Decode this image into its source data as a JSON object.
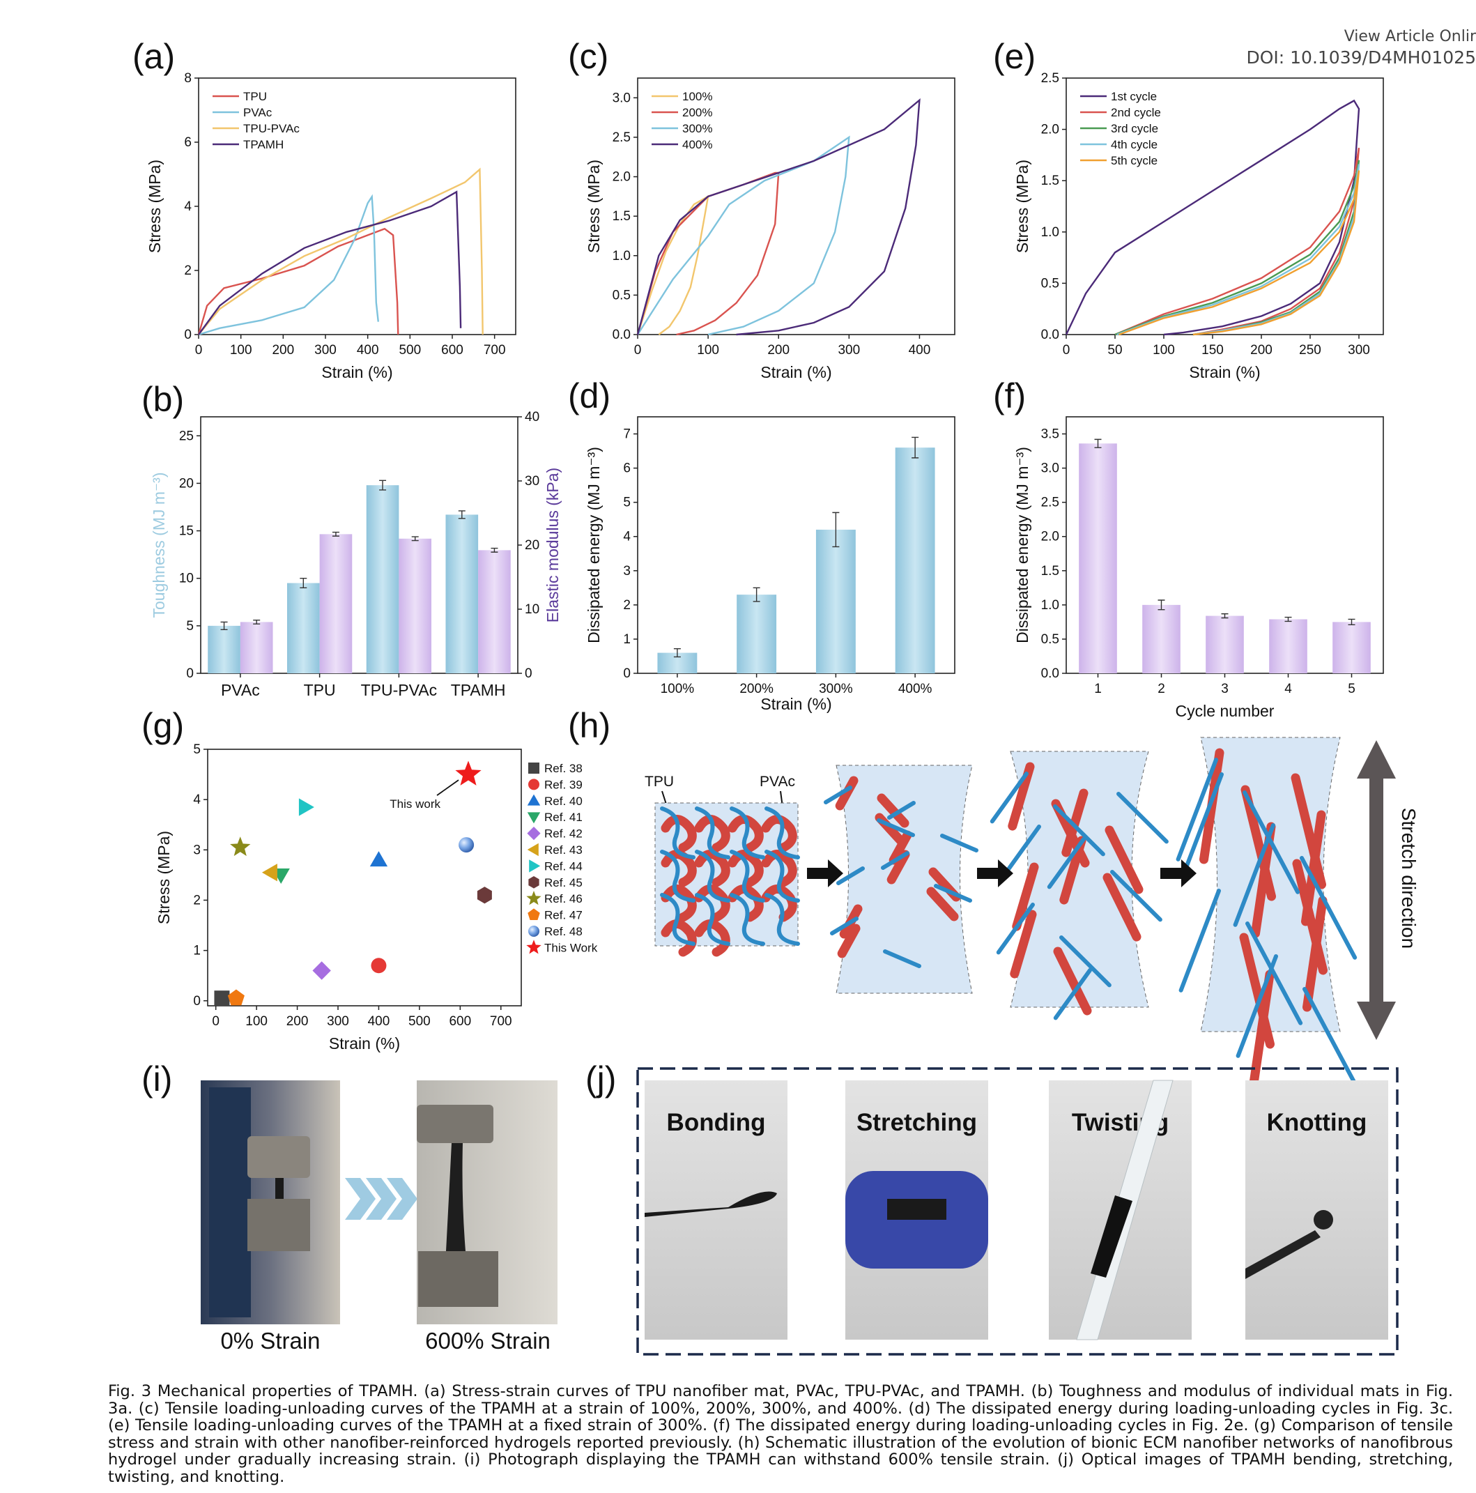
{
  "journal": {
    "view_online": "View Article Onlir",
    "doi": "DOI: 10.1039/D4MH01025"
  },
  "caption": "Fig. 3 Mechanical properties of TPAMH. (a) Stress-strain curves of TPU nanofiber mat, PVAc, TPU-PVAc, and TPAMH. (b) Toughness and modulus of individual mats in Fig. 3a. (c) Tensile loading-unloading curves of the TPAMH at a strain of 100%, 200%, 300%, and 400%. (d) The dissipated energy during loading-unloading cycles in Fig. 3c. (e) Tensile loading-unloading curves of the TPAMH at a fixed strain of 300%. (f) The dissipated energy during loading-unloading cycles in Fig. 2e. (g) Comparison of tensile stress and strain with other nanofiber-reinforced hydrogels reported previously. (h) Schematic illustration of the evolution of bionic ECM nanofiber networks of nanofibrous hydrogel under gradually increasing strain. (i) Photograph displaying the TPAMH can withstand 600% tensile strain. (j) Optical images of TPAMH bending, stretching, twisting, and knotting.",
  "panel_labels": {
    "a": "(a)",
    "b": "(b)",
    "c": "(c)",
    "d": "(d)",
    "e": "(e)",
    "f": "(f)",
    "g": "(g)",
    "h": "(h)",
    "i": "(i)",
    "j": "(j)"
  },
  "colors": {
    "tpu": "#d9534f",
    "pvac": "#7ec3dd",
    "tpupvac": "#f2c66d",
    "tpamh": "#4b2a78",
    "bar_blue": "#a8d4e6",
    "bar_purple": "#d8c3ee",
    "green": "#4a9a52",
    "orange": "#f0a030"
  },
  "chart_data": [
    {
      "id": "a",
      "type": "line",
      "xlabel": "Strain (%)",
      "ylabel": "Stress (MPa)",
      "xlim": [
        0,
        750
      ],
      "ylim": [
        0,
        8
      ],
      "xticks": [
        0,
        100,
        200,
        300,
        400,
        500,
        600,
        700
      ],
      "yticks": [
        0,
        2,
        4,
        6,
        8
      ],
      "legend": "top-left",
      "series": [
        {
          "name": "TPU",
          "color": "#d9534f",
          "x": [
            0,
            20,
            60,
            150,
            250,
            330,
            400,
            440,
            460,
            470,
            472
          ],
          "y": [
            0,
            0.9,
            1.45,
            1.75,
            2.15,
            2.75,
            3.1,
            3.3,
            3.1,
            1.0,
            0
          ]
        },
        {
          "name": "PVAc",
          "color": "#7ec3dd",
          "x": [
            0,
            50,
            150,
            250,
            320,
            370,
            400,
            410,
            415,
            420,
            425
          ],
          "y": [
            0,
            0.2,
            0.45,
            0.85,
            1.7,
            3.0,
            4.1,
            4.3,
            3.2,
            1.0,
            0.4
          ]
        },
        {
          "name": "TPU-PVAc",
          "color": "#f2c66d",
          "x": [
            0,
            50,
            150,
            250,
            350,
            450,
            550,
            630,
            665,
            670,
            672
          ],
          "y": [
            0,
            0.8,
            1.7,
            2.45,
            3.0,
            3.65,
            4.25,
            4.75,
            5.15,
            2.0,
            0
          ]
        },
        {
          "name": "TPAMH",
          "color": "#4b2a78",
          "x": [
            0,
            50,
            150,
            250,
            350,
            450,
            550,
            610,
            618,
            620
          ],
          "y": [
            0,
            0.9,
            1.9,
            2.7,
            3.2,
            3.55,
            4.0,
            4.45,
            1.5,
            0.2
          ]
        }
      ]
    },
    {
      "id": "b",
      "type": "bar",
      "categories": [
        "PVAc",
        "TPU",
        "TPU-PVAc",
        "TPAMH"
      ],
      "ylabel": "Toughness (MJ m⁻³)",
      "y2label": "Elastic modulus (kPa)",
      "ylim": [
        0,
        27
      ],
      "y2lim": [
        0,
        40
      ],
      "yticks": [
        0,
        5,
        10,
        15,
        20,
        25
      ],
      "y2ticks": [
        0,
        10,
        20,
        30,
        40
      ],
      "series": [
        {
          "name": "Toughness",
          "axis": "left",
          "color": "#a8d4e6",
          "values": [
            5.0,
            9.5,
            19.8,
            16.7
          ],
          "errors": [
            0.4,
            0.5,
            0.5,
            0.4
          ]
        },
        {
          "name": "Elastic modulus",
          "axis": "right",
          "color": "#d8c3ee",
          "values": [
            8.0,
            21.7,
            21.0,
            19.2
          ],
          "errors": [
            0.3,
            0.3,
            0.3,
            0.3
          ]
        }
      ]
    },
    {
      "id": "c",
      "type": "line",
      "xlabel": "Strain (%)",
      "ylabel": "Stress (MPa)",
      "xlim": [
        0,
        450
      ],
      "ylim": [
        0,
        3.25
      ],
      "xticks": [
        0,
        100,
        200,
        300,
        400
      ],
      "yticks": [
        0,
        0.5,
        1.0,
        1.5,
        2.0,
        2.5,
        3.0
      ],
      "legend": "top-left",
      "series": [
        {
          "name": "100%",
          "color": "#f2c66d",
          "x": [
            0,
            20,
            40,
            60,
            80,
            100,
            95,
            85,
            75,
            60,
            45,
            30
          ],
          "y": [
            0,
            0.55,
            1.05,
            1.4,
            1.65,
            1.75,
            1.5,
            1.0,
            0.6,
            0.3,
            0.1,
            0
          ]
        },
        {
          "name": "200%",
          "color": "#d9534f",
          "x": [
            0,
            25,
            50,
            100,
            150,
            195,
            200,
            195,
            170,
            140,
            110,
            80,
            55
          ],
          "y": [
            0,
            0.8,
            1.3,
            1.75,
            1.9,
            2.05,
            2.05,
            1.4,
            0.75,
            0.4,
            0.18,
            0.05,
            0
          ]
        },
        {
          "name": "300%",
          "color": "#7ec3dd",
          "x": [
            0,
            50,
            100,
            130,
            180,
            250,
            300,
            295,
            280,
            250,
            200,
            150,
            100
          ],
          "y": [
            0,
            0.7,
            1.25,
            1.65,
            1.95,
            2.2,
            2.5,
            2.0,
            1.3,
            0.65,
            0.3,
            0.1,
            0
          ]
        },
        {
          "name": "400%",
          "color": "#4b2a78",
          "x": [
            0,
            30,
            60,
            100,
            150,
            250,
            350,
            400,
            395,
            380,
            350,
            300,
            250,
            200,
            140
          ],
          "y": [
            0,
            1.0,
            1.45,
            1.75,
            1.9,
            2.2,
            2.6,
            2.97,
            2.4,
            1.6,
            0.8,
            0.35,
            0.15,
            0.05,
            0
          ]
        }
      ]
    },
    {
      "id": "d",
      "type": "bar",
      "categories": [
        "100%",
        "200%",
        "300%",
        "400%"
      ],
      "xlabel": "Strain (%)",
      "ylabel": "Dissipated energy (MJ m⁻³)",
      "ylim": [
        0,
        7.5
      ],
      "yticks": [
        0,
        1,
        2,
        3,
        4,
        5,
        6,
        7
      ],
      "color": "#a8d4e6",
      "values": [
        0.6,
        2.3,
        4.2,
        6.6
      ],
      "errors": [
        0.12,
        0.2,
        0.5,
        0.3
      ]
    },
    {
      "id": "e",
      "type": "line",
      "xlabel": "Strain (%)",
      "ylabel": "Stress (MPa)",
      "xlim": [
        0,
        325
      ],
      "ylim": [
        0,
        2.5
      ],
      "xticks": [
        0,
        50,
        100,
        150,
        200,
        250,
        300
      ],
      "yticks": [
        0,
        0.5,
        1.0,
        1.5,
        2.0,
        2.5
      ],
      "legend": "top-left",
      "series": [
        {
          "name": "1st cycle",
          "color": "#4b2a78",
          "x": [
            0,
            20,
            50,
            100,
            150,
            200,
            250,
            280,
            295,
            300,
            295,
            280,
            260,
            230,
            200,
            160,
            120,
            100
          ],
          "y": [
            0,
            0.4,
            0.8,
            1.1,
            1.4,
            1.7,
            2.0,
            2.2,
            2.28,
            2.2,
            1.5,
            0.9,
            0.5,
            0.3,
            0.18,
            0.08,
            0.02,
            0
          ]
        },
        {
          "name": "2nd cycle",
          "color": "#d9534f",
          "x": [
            50,
            100,
            150,
            200,
            250,
            280,
            295,
            300,
            295,
            280,
            260,
            230,
            200,
            160,
            130
          ],
          "y": [
            0,
            0.2,
            0.35,
            0.55,
            0.85,
            1.2,
            1.55,
            1.82,
            1.3,
            0.8,
            0.45,
            0.25,
            0.13,
            0.05,
            0
          ]
        },
        {
          "name": "3rd cycle",
          "color": "#4a9a52",
          "x": [
            50,
            100,
            150,
            200,
            250,
            280,
            295,
            300,
            295,
            280,
            260,
            230,
            200,
            160,
            130
          ],
          "y": [
            0,
            0.18,
            0.31,
            0.5,
            0.78,
            1.1,
            1.45,
            1.7,
            1.2,
            0.75,
            0.42,
            0.22,
            0.12,
            0.04,
            0
          ]
        },
        {
          "name": "4th cycle",
          "color": "#7ec3dd",
          "x": [
            52,
            100,
            150,
            200,
            250,
            280,
            295,
            300,
            295,
            280,
            260,
            230,
            200,
            160,
            130
          ],
          "y": [
            0,
            0.17,
            0.29,
            0.47,
            0.74,
            1.05,
            1.38,
            1.66,
            1.15,
            0.72,
            0.4,
            0.21,
            0.11,
            0.04,
            0
          ]
        },
        {
          "name": "5th cycle",
          "color": "#f0a030",
          "x": [
            54,
            100,
            150,
            200,
            250,
            280,
            295,
            300,
            295,
            280,
            260,
            230,
            200,
            160,
            130
          ],
          "y": [
            0,
            0.16,
            0.27,
            0.45,
            0.7,
            1.0,
            1.32,
            1.6,
            1.1,
            0.7,
            0.38,
            0.2,
            0.1,
            0.03,
            0
          ]
        }
      ]
    },
    {
      "id": "f",
      "type": "bar",
      "categories": [
        "1",
        "2",
        "3",
        "4",
        "5"
      ],
      "xlabel": "Cycle number",
      "ylabel": "Dissipated energy (MJ m⁻³)",
      "ylim": [
        0,
        3.75
      ],
      "yticks": [
        0,
        0.5,
        1.0,
        1.5,
        2.0,
        2.5,
        3.0,
        3.5
      ],
      "color": "#d8c3ee",
      "values": [
        3.36,
        1.0,
        0.84,
        0.79,
        0.75
      ],
      "errors": [
        0.06,
        0.07,
        0.03,
        0.03,
        0.04
      ]
    },
    {
      "id": "g",
      "type": "scatter",
      "xlabel": "Strain (%)",
      "ylabel": "Stress (MPa)",
      "xlim": [
        -20,
        750
      ],
      "ylim": [
        -0.1,
        5
      ],
      "xticks": [
        0,
        100,
        200,
        300,
        400,
        500,
        600,
        700
      ],
      "yticks": [
        0,
        1,
        2,
        3,
        4,
        5
      ],
      "legend": "right",
      "annotation": "This work",
      "series": [
        {
          "name": "Ref. 38",
          "marker": "square",
          "color": "#444444",
          "x": 15,
          "y": 0.05
        },
        {
          "name": "Ref. 39",
          "marker": "circle",
          "color": "#e53935",
          "x": 400,
          "y": 0.7
        },
        {
          "name": "Ref. 40",
          "marker": "triangle-up",
          "color": "#1e73d2",
          "x": 400,
          "y": 2.8
        },
        {
          "name": "Ref. 41",
          "marker": "triangle-down",
          "color": "#2aa768",
          "x": 160,
          "y": 2.5
        },
        {
          "name": "Ref. 42",
          "marker": "diamond",
          "color": "#a66de0",
          "x": 260,
          "y": 0.6
        },
        {
          "name": "Ref. 43",
          "marker": "triangle-left",
          "color": "#d6a21a",
          "x": 135,
          "y": 2.55
        },
        {
          "name": "Ref. 44",
          "marker": "triangle-right",
          "color": "#20c4c4",
          "x": 220,
          "y": 3.85
        },
        {
          "name": "Ref. 45",
          "marker": "hexagon",
          "color": "#6b3a3a",
          "x": 660,
          "y": 2.1
        },
        {
          "name": "Ref. 46",
          "marker": "star",
          "color": "#8a8a1a",
          "x": 60,
          "y": 3.05
        },
        {
          "name": "Ref. 47",
          "marker": "pentagon",
          "color": "#f07810",
          "x": 50,
          "y": 0.05
        },
        {
          "name": "Ref. 48",
          "marker": "sphere",
          "color": "#5b8fd8",
          "x": 615,
          "y": 3.1
        },
        {
          "name": "This Work",
          "marker": "star",
          "color": "#ee1c1c",
          "x": 620,
          "y": 4.5
        }
      ]
    }
  ],
  "schematic": {
    "tpu_label": "TPU",
    "pvac_label": "PVAc",
    "stretch_label": "Stretch direction"
  },
  "photos_i": {
    "left_caption": "0% Strain",
    "right_caption": "600% Strain"
  },
  "photos_j": [
    {
      "label": "Bonding"
    },
    {
      "label": "Stretching"
    },
    {
      "label": "Twisting"
    },
    {
      "label": "Knotting"
    }
  ]
}
